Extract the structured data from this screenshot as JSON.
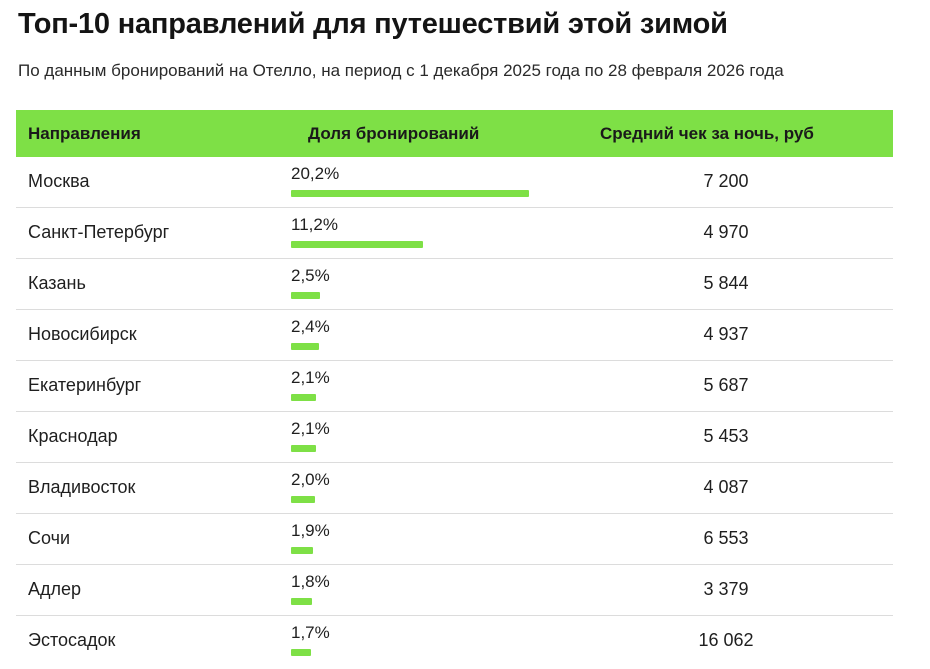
{
  "header": {
    "title": "Топ-10 направлений для путешествий этой зимой",
    "subtitle": "По данным бронирований на Отелло, на период с 1 декабря 2025 года по 28 февраля 2026 года"
  },
  "colors": {
    "accent": "#7ee046",
    "row_divider": "#dcdcdc",
    "text": "#1f1f1f"
  },
  "chart_data": {
    "type": "table",
    "title": "Топ-10 направлений для путешествий этой зимой",
    "subtitle": "По данным бронирований на Отелло, на период с 1 декабря 2025 года по 28 февраля 2026 года",
    "columns": [
      "Направления",
      "Доля бронирований",
      "Средний чек за ночь, руб"
    ],
    "bar_max": 20.2,
    "rows": [
      {
        "destination": "Москва",
        "share_label": "20,2%",
        "share": 20.2,
        "price": "7 200"
      },
      {
        "destination": "Санкт-Петербург",
        "share_label": "11,2%",
        "share": 11.2,
        "price": "4 970"
      },
      {
        "destination": "Казань",
        "share_label": "2,5%",
        "share": 2.5,
        "price": "5 844"
      },
      {
        "destination": "Новосибирск",
        "share_label": "2,4%",
        "share": 2.4,
        "price": "4 937"
      },
      {
        "destination": "Екатеринбург",
        "share_label": "2,1%",
        "share": 2.1,
        "price": "5 687"
      },
      {
        "destination": "Краснодар",
        "share_label": "2,1%",
        "share": 2.1,
        "price": "5 453"
      },
      {
        "destination": "Владивосток",
        "share_label": "2,0%",
        "share": 2.0,
        "price": "4 087"
      },
      {
        "destination": "Сочи",
        "share_label": "1,9%",
        "share": 1.9,
        "price": "6 553"
      },
      {
        "destination": "Адлер",
        "share_label": "1,8%",
        "share": 1.8,
        "price": "3 379"
      },
      {
        "destination": "Эстосадок",
        "share_label": "1,7%",
        "share": 1.7,
        "price": "16 062"
      }
    ]
  }
}
